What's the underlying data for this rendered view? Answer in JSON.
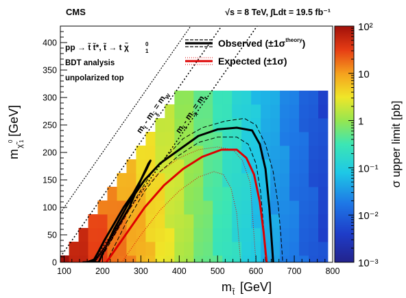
{
  "header": {
    "experiment": "CMS",
    "energy_lumi": "√s = 8 TeV, ∫Ldt = 19.5 fb⁻¹"
  },
  "chart_data": {
    "type": "heatmap",
    "title": "",
    "xlabel": "m t̃ [GeV]",
    "ylabel": "m χ̃₁⁰ [GeV]",
    "xlim": [
      90,
      800
    ],
    "ylim": [
      0,
      430
    ],
    "x_ticks": [
      100,
      200,
      300,
      400,
      500,
      600,
      700,
      800
    ],
    "y_ticks": [
      0,
      50,
      100,
      150,
      200,
      250,
      300,
      350,
      400
    ],
    "colorbar": {
      "label": "σ upper limit [pb]",
      "scale": "log",
      "range": [
        0.001,
        100
      ],
      "tick_labels": [
        "10²",
        "10",
        "1",
        "10⁻¹",
        "10⁻²",
        "10⁻³"
      ],
      "tick_values": [
        100,
        10,
        1,
        0.1,
        0.01,
        0.001
      ]
    },
    "grid": false,
    "legend": {
      "placement": "top",
      "process": "pp → t̃ t̃*, t̃ → t χ̃₁⁰",
      "notes": [
        "BDT analysis",
        "unpolarized top"
      ],
      "entries": [
        {
          "label": "Observed (±1σ",
          "sup": "theory",
          "tail": ")",
          "color": "#000000"
        },
        {
          "label": "Expected (±1σ)",
          "color": "#dd0000"
        }
      ]
    },
    "diagonal_labels": [
      {
        "main": "m",
        "rest": " - m",
        "sub_end": "W",
        "text": "m_t̃ - m_χ̃ = m_W"
      },
      {
        "main": "m",
        "rest": " - m",
        "sub_end": "t",
        "text": "m_t̃ - m_χ̃ = m_t"
      }
    ],
    "series": [
      {
        "name": "Observed",
        "color": "#000000",
        "x": [
          155,
          180,
          220,
          270,
          300,
          320,
          325,
          315,
          300,
          280,
          255,
          230,
          205,
          190,
          178,
          160,
          150,
          160,
          190,
          230,
          270,
          310,
          350,
          400,
          450,
          500,
          550,
          590,
          610,
          625,
          635,
          642,
          645
        ],
        "y": [
          0,
          2,
          40,
          100,
          150,
          180,
          185,
          170,
          150,
          125,
          100,
          70,
          40,
          20,
          5,
          0,
          0,
          0,
          0,
          60,
          110,
          150,
          180,
          205,
          230,
          242,
          245,
          240,
          215,
          170,
          100,
          30,
          0
        ]
      },
      {
        "name": "Observed +1σ theory",
        "color": "#000000",
        "dashed": true,
        "x": [
          190,
          240,
          290,
          330,
          370,
          410,
          460,
          520,
          570,
          600,
          625,
          645,
          658,
          665,
          670
        ],
        "y": [
          0,
          60,
          120,
          165,
          195,
          225,
          245,
          257,
          262,
          250,
          215,
          165,
          105,
          50,
          0
        ]
      },
      {
        "name": "Observed -1σ theory",
        "color": "#000000",
        "dashed": true,
        "x": [
          210,
          260,
          310,
          350,
          400,
          450,
          500,
          550,
          580,
          600,
          612,
          620,
          625
        ],
        "y": [
          0,
          70,
          130,
          165,
          195,
          218,
          228,
          228,
          215,
          180,
          130,
          65,
          0
        ]
      },
      {
        "name": "Expected",
        "color": "#dd0000",
        "x": [
          210,
          260,
          310,
          360,
          410,
          460,
          510,
          550,
          575,
          595,
          610,
          620,
          628
        ],
        "y": [
          0,
          50,
          100,
          140,
          170,
          192,
          205,
          205,
          190,
          160,
          110,
          55,
          0
        ]
      },
      {
        "name": "Expected +1σ",
        "color": "#dd0000",
        "dotted": true,
        "x": [
          180,
          220,
          270,
          310,
          350,
          400,
          450,
          500,
          540,
          565,
          585,
          600
        ],
        "y": [
          0,
          40,
          95,
          135,
          165,
          190,
          205,
          210,
          205,
          185,
          145,
          0
        ]
      },
      {
        "name": "Expected -1σ",
        "color": "#dd0000",
        "dotted": true,
        "x": [
          250,
          300,
          350,
          400,
          450,
          490,
          515,
          535,
          550,
          560
        ],
        "y": [
          0,
          50,
          95,
          130,
          155,
          165,
          160,
          135,
          90,
          0
        ]
      }
    ]
  }
}
